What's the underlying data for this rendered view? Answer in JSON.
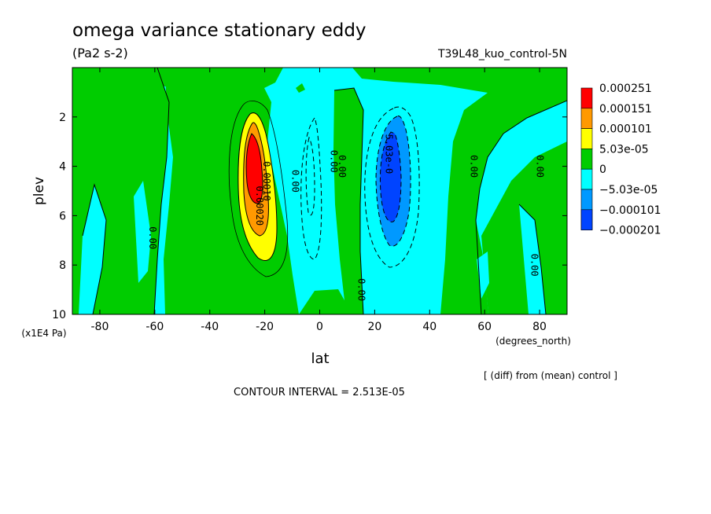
{
  "chart_data": {
    "type": "heatmap",
    "title": "omega variance stationary eddy",
    "units": "(Pa2 s-2)",
    "run_label": "T39L48_kuo_control-5N",
    "xlabel": "lat",
    "x_units": "(degrees_north)",
    "ylabel": "plev",
    "y_units": "(x1E4 Pa)",
    "xlim": [
      -90,
      90
    ],
    "ylim": [
      10,
      0
    ],
    "x_ticks": [
      -80,
      -60,
      -40,
      -20,
      0,
      20,
      40,
      60,
      80
    ],
    "y_ticks": [
      2,
      4,
      6,
      8,
      10
    ],
    "contour_interval_text": "CONTOUR INTERVAL = 2.513E-05",
    "diff_note": "[ (diff) from (mean) control ]",
    "legend": [
      {
        "label": "0.000251",
        "color": "#ff0000"
      },
      {
        "label": "0.000151",
        "color": "#ff9900"
      },
      {
        "label": "0.000101",
        "color": "#ffff00"
      },
      {
        "label": "5.03e-05",
        "color": "#00cc00"
      },
      {
        "label": "0",
        "color": "#00ffff"
      },
      {
        "label": "−5.03e-05",
        "color": "#0099ff"
      },
      {
        "label": "−0.000101",
        "color": "#0044ff"
      },
      {
        "label": "−0.000201",
        "color": null
      }
    ],
    "contour_labels": [
      {
        "text": "0.00",
        "lat": -62,
        "plev": 6.9
      },
      {
        "text": "0.00",
        "lat": -10,
        "plev": 4.6
      },
      {
        "text": "0.00",
        "lat": 4,
        "plev": 3.8
      },
      {
        "text": "0.00",
        "lat": 7,
        "plev": 4.0
      },
      {
        "text": "0.00",
        "lat": 14,
        "plev": 9.0
      },
      {
        "text": "0.00",
        "lat": 55,
        "plev": 4.0
      },
      {
        "text": "0.00",
        "lat": 79,
        "plev": 4.0
      },
      {
        "text": "0.00",
        "lat": 77,
        "plev": 8.0
      },
      {
        "text": "0.00010",
        "lat": -20.5,
        "plev": 4.6
      },
      {
        "text": "0.00020",
        "lat": -23,
        "plev": 5.6
      },
      {
        "text": "5.03e-0",
        "lat": 24,
        "plev": 3.5
      }
    ]
  }
}
